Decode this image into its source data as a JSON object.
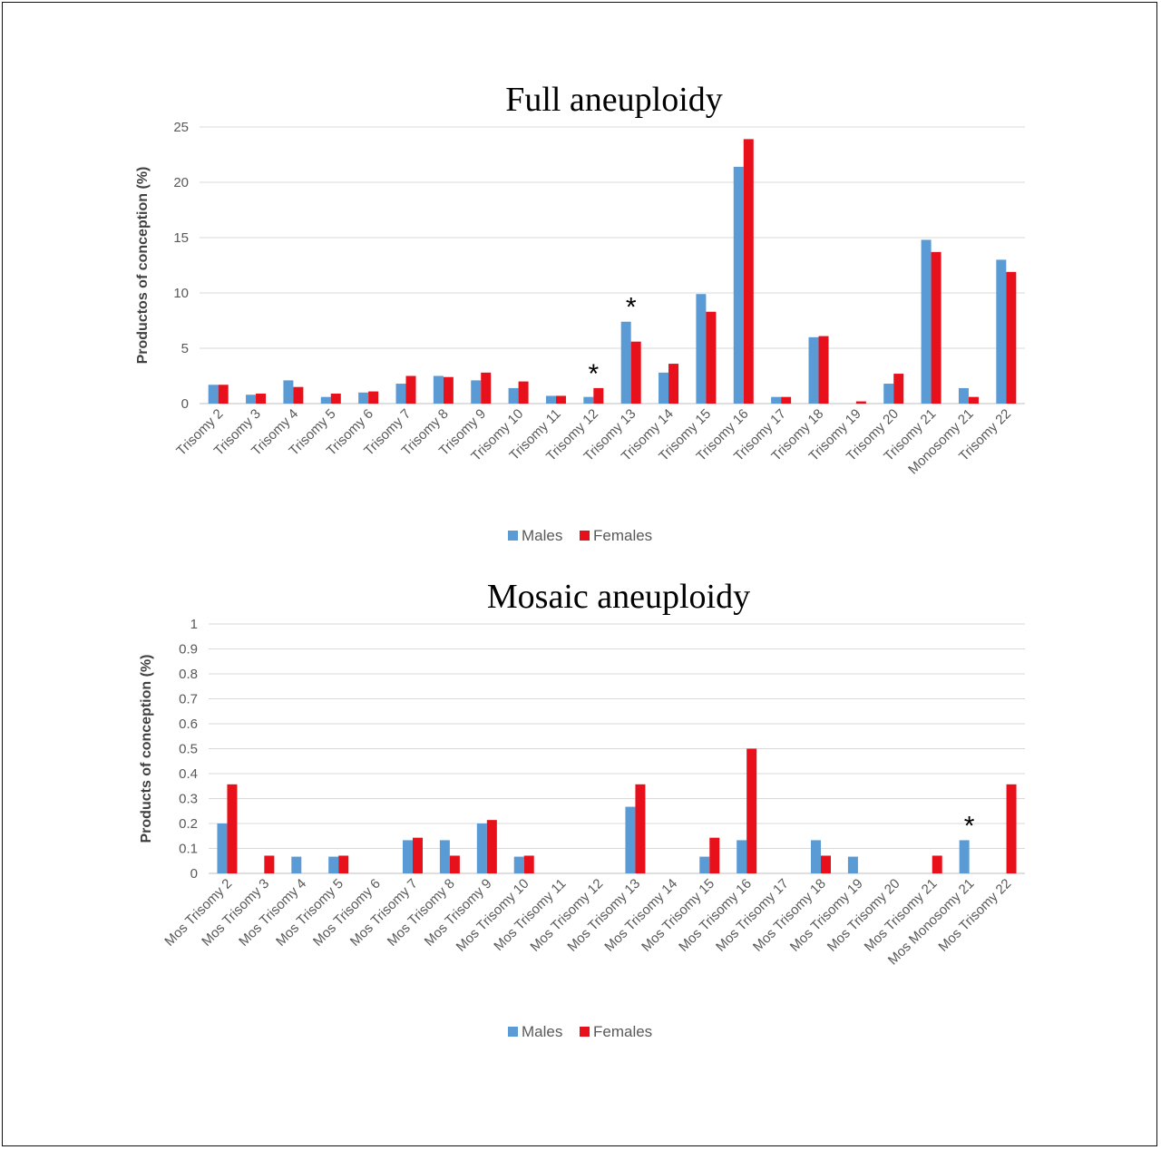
{
  "chart_data": [
    {
      "type": "bar",
      "title": "Full aneuploidy",
      "ylabel": "Productos of conception  (%)",
      "xlabel": "",
      "ylim": [
        0,
        25
      ],
      "yticks": [
        "0",
        "5",
        "10",
        "15",
        "20",
        "25"
      ],
      "ytick_values": [
        0,
        5,
        10,
        15,
        20,
        25
      ],
      "grid": true,
      "legend_position": "bottom",
      "categories": [
        "Trisomy 2",
        "Trisomy 3",
        "Trisomy 4",
        "Trisomy 5",
        "Trisomy 6",
        "Trisomy 7",
        "Trisomy 8",
        "Trisomy 9",
        "Trisomy 10",
        "Trisomy 11",
        "Trisomy 12",
        "Trisomy 13",
        "Trisomy 14",
        "Trisomy 15",
        "Trisomy 16",
        "Trisomy 17",
        "Trisomy 18",
        "Trisomy 19",
        "Trisomy 20",
        "Trisomy 21",
        "Monosomy 21",
        "Trisomy 22"
      ],
      "series": [
        {
          "name": "Males",
          "color": "#5b9bd5",
          "values": [
            1.7,
            0.8,
            2.1,
            0.6,
            1.0,
            1.8,
            2.5,
            2.1,
            1.4,
            0.7,
            0.6,
            7.4,
            2.8,
            9.9,
            21.4,
            0.6,
            6.0,
            0.0,
            1.8,
            14.8,
            1.4,
            13.0
          ]
        },
        {
          "name": "Females",
          "color": "#e8101a",
          "values": [
            1.7,
            0.9,
            1.5,
            0.9,
            1.1,
            2.5,
            2.4,
            2.8,
            2.0,
            0.7,
            1.4,
            5.6,
            3.6,
            8.3,
            23.9,
            0.6,
            6.1,
            0.2,
            2.7,
            13.7,
            0.6,
            11.9
          ]
        }
      ],
      "annotations": [
        {
          "category": "Trisomy 12",
          "text": "*"
        },
        {
          "category": "Trisomy 13",
          "text": "*"
        }
      ]
    },
    {
      "type": "bar",
      "title": "Mosaic aneuploidy",
      "ylabel": "Products of conception  (%)",
      "xlabel": "",
      "ylim": [
        0,
        1
      ],
      "yticks": [
        "0",
        "0.1",
        "0.2",
        "0.3",
        "0.4",
        "0.5",
        "0.6",
        "0.7",
        "0.8",
        "0.9",
        "1"
      ],
      "ytick_values": [
        0,
        0.1,
        0.2,
        0.3,
        0.4,
        0.5,
        0.6,
        0.7,
        0.8,
        0.9,
        1
      ],
      "grid": true,
      "legend_position": "bottom",
      "categories": [
        "Mos Trisomy 2",
        "Mos Trisomy 3",
        "Mos Trisomy 4",
        "Mos Trisomy 5",
        "Mos Trisomy 6",
        "Mos Trisomy 7",
        "Mos Trisomy 8",
        "Mos Trisomy 9",
        "Mos Trisomy 10",
        "Mos Trisomy 11",
        "Mos Trisomy 12",
        "Mos Trisomy 13",
        "Mos Trisomy 14",
        "Mos Trisomy 15",
        "Mos Trisomy 16",
        "Mos Trisomy 17",
        "Mos Trisomy 18",
        "Mos Trisomy 19",
        "Mos Trisomy 20",
        "Mos Trisomy 21",
        "Mos Monosomy 21",
        "Mos Trisomy 22"
      ],
      "series": [
        {
          "name": "Males",
          "color": "#5b9bd5",
          "values": [
            0.2,
            0,
            0.067,
            0.067,
            0,
            0.133,
            0.133,
            0.2,
            0.067,
            0,
            0,
            0.267,
            0,
            0.067,
            0.133,
            0,
            0.133,
            0.067,
            0,
            0,
            0.133,
            0
          ]
        },
        {
          "name": "Females",
          "color": "#e8101a",
          "values": [
            0.357,
            0.071,
            0,
            0.071,
            0,
            0.143,
            0.071,
            0.214,
            0.071,
            0,
            0,
            0.357,
            0,
            0.143,
            0.5,
            0,
            0.071,
            0,
            0,
            0.071,
            0,
            0.357
          ]
        }
      ],
      "annotations": [
        {
          "category": "Mos Monosomy 21",
          "text": "*"
        }
      ]
    }
  ]
}
